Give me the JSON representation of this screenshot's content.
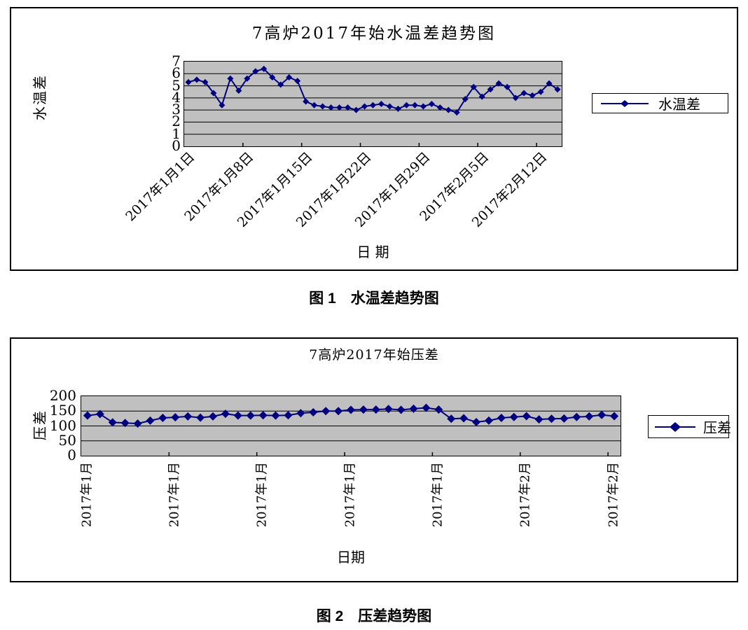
{
  "colors": {
    "series": "#000080",
    "plot_bg": "#c0c0c0",
    "grid": "#000000",
    "text": "#000000"
  },
  "figures": [
    {
      "caption": "图 1　水温差趋势图"
    },
    {
      "caption": "图 2　压差趋势图"
    }
  ],
  "chart_data": [
    {
      "type": "line",
      "title": "7高炉2017年始水温差趋势图",
      "xlabel": "日 期",
      "ylabel": "水温差",
      "legend": [
        "水温差"
      ],
      "legend_position": "right",
      "grid": "horizontal",
      "marker": "diamond",
      "ylim": [
        0,
        7
      ],
      "yticks": [
        0,
        1,
        2,
        3,
        4,
        5,
        6,
        7
      ],
      "x_tick_interval": 7,
      "x_tick_labels": [
        "2017年1月1日",
        "2017年1月8日",
        "2017年1月15日",
        "2017年1月22日",
        "2017年1月29日",
        "2017年2月5日",
        "2017年2月12日"
      ],
      "values": [
        5.3,
        5.5,
        5.3,
        4.4,
        3.4,
        5.6,
        4.6,
        5.6,
        6.2,
        6.4,
        5.7,
        5.1,
        5.7,
        5.4,
        3.7,
        3.4,
        3.3,
        3.2,
        3.2,
        3.2,
        3.0,
        3.3,
        3.4,
        3.5,
        3.3,
        3.1,
        3.4,
        3.4,
        3.3,
        3.5,
        3.2,
        3.0,
        2.8,
        3.9,
        4.9,
        4.1,
        4.7,
        5.2,
        4.9,
        4.0,
        4.4,
        4.2,
        4.5,
        5.2,
        4.7
      ]
    },
    {
      "type": "line",
      "title": "7高炉2017年始压差",
      "xlabel": "日期",
      "ylabel": "压差",
      "legend": [
        "压差"
      ],
      "legend_position": "right",
      "grid": "horizontal",
      "marker": "diamond",
      "ylim": [
        0,
        200
      ],
      "yticks": [
        0,
        50,
        100,
        150,
        200
      ],
      "x_tick_interval": 7,
      "x_tick_labels": [
        "2017年1月",
        "2017年1月",
        "2017年1月",
        "2017年1月",
        "2017年1月",
        "2017年2月",
        "2017年2月"
      ],
      "values": [
        135,
        140,
        112,
        110,
        108,
        118,
        127,
        129,
        132,
        128,
        132,
        141,
        135,
        135,
        136,
        135,
        136,
        143,
        146,
        150,
        150,
        154,
        155,
        155,
        157,
        154,
        158,
        161,
        155,
        124,
        126,
        113,
        118,
        127,
        130,
        133,
        122,
        124,
        125,
        130,
        132,
        137,
        133
      ]
    }
  ]
}
